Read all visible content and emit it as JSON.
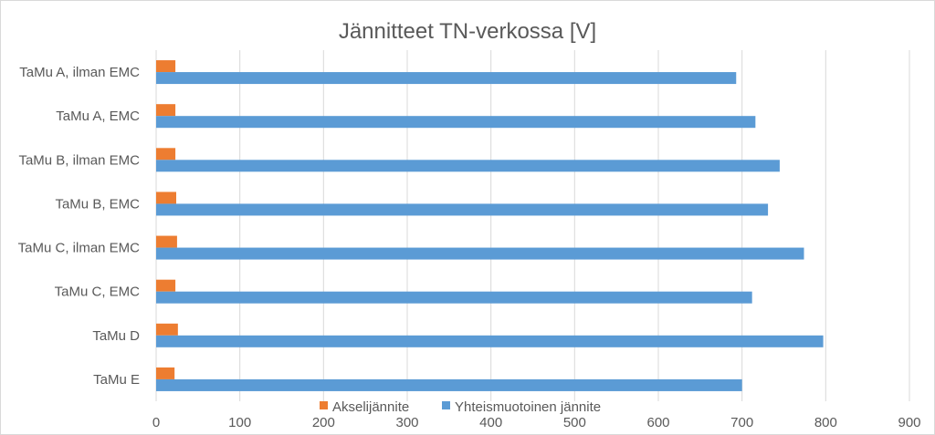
{
  "chart_data": {
    "type": "bar",
    "orientation": "horizontal",
    "title": "Jännitteet TN-verkossa [V]",
    "xlabel": "",
    "ylabel": "",
    "xlim": [
      0,
      900
    ],
    "xticks": [
      0,
      100,
      200,
      300,
      400,
      500,
      600,
      700,
      800,
      900
    ],
    "grid": true,
    "legend_position": "bottom",
    "categories": [
      "TaMu A, ilman EMC",
      "TaMu A, EMC",
      "TaMu B, ilman EMC",
      "TaMu B, EMC",
      "TaMu C, ilman EMC",
      "TaMu C, EMC",
      "TaMu D",
      "TaMu E"
    ],
    "series": [
      {
        "name": "Akselijännite",
        "color": "#ed7d31",
        "values": [
          23,
          23,
          23,
          24,
          25,
          23,
          26,
          22
        ]
      },
      {
        "name": "Yhteismuotoinen jännite",
        "color": "#5b9bd5",
        "values": [
          693,
          716,
          745,
          731,
          774,
          712,
          797,
          700
        ]
      }
    ]
  }
}
